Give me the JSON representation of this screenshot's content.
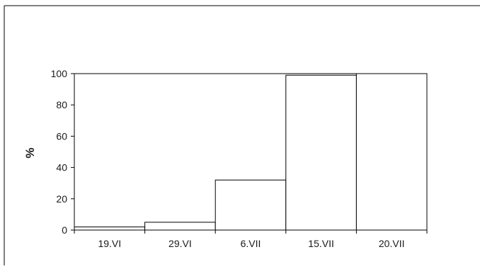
{
  "chart_data": {
    "type": "bar",
    "title": "",
    "xlabel": "",
    "ylabel": "%",
    "categories": [
      "19.VI",
      "29.VI",
      "6.VII",
      "15.VII",
      "20.VII"
    ],
    "values": [
      2,
      5,
      32,
      99,
      100
    ],
    "ylim": [
      0,
      100
    ],
    "yticks": [
      0,
      20,
      40,
      60,
      80,
      100
    ],
    "grid": false,
    "legend": "none",
    "colors": {
      "bar_fill": "#ffffff",
      "bar_stroke": "#000000",
      "axis": "#000000",
      "text": "#1a1a1a"
    }
  }
}
